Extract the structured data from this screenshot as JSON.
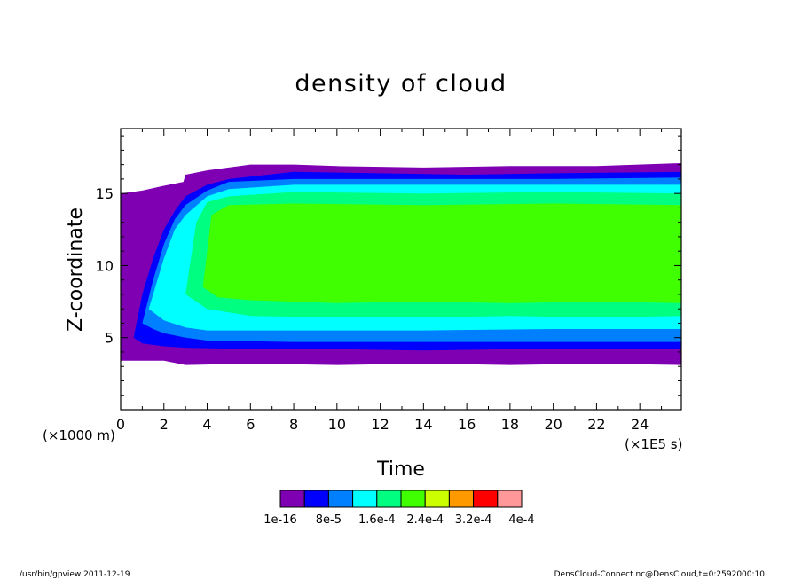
{
  "chart_data": {
    "type": "heatmap",
    "title": "density of cloud",
    "xlabel": "Time",
    "ylabel": "Z-coordinate",
    "x_unit": "(×1E5 s)",
    "y_unit": "(×1000 m)",
    "xlim": [
      0,
      25.92
    ],
    "ylim": [
      0,
      19.5
    ],
    "x_ticks": [
      0,
      2,
      4,
      6,
      8,
      10,
      12,
      14,
      16,
      18,
      20,
      22,
      24
    ],
    "x_tick_labels": [
      "0",
      "2",
      "4",
      "6",
      "8",
      "10",
      "12",
      "14",
      "16",
      "18",
      "20",
      "22",
      "24"
    ],
    "y_ticks": [
      5,
      10,
      15
    ],
    "y_tick_labels": [
      "5",
      "10",
      "15"
    ],
    "levels": [
      {
        "color": "#7f00b2"
      },
      {
        "color": "#0000ff"
      },
      {
        "color": "#0080ff"
      },
      {
        "color": "#00ffff"
      },
      {
        "color": "#00ff80"
      },
      {
        "color": "#40ff00"
      },
      {
        "color": "#ccff00"
      },
      {
        "color": "#ff9900"
      },
      {
        "color": "#ff0000"
      },
      {
        "color": "#ff9999"
      }
    ],
    "colorbar_labels": [
      "1e-16",
      "8e-5",
      "1.6e-4",
      "2.4e-4",
      "3.2e-4",
      "4e-4"
    ],
    "contours": [
      {
        "level": 0,
        "lower": [
          [
            0,
            3.4
          ],
          [
            1,
            3.4
          ],
          [
            2,
            3.4
          ],
          [
            3,
            3.1
          ],
          [
            6,
            3.2
          ],
          [
            10,
            3.1
          ],
          [
            14,
            3.2
          ],
          [
            18,
            3.1
          ],
          [
            22,
            3.2
          ],
          [
            25.92,
            3.1
          ]
        ],
        "upper": [
          [
            0,
            15.0
          ],
          [
            1,
            15.2
          ],
          [
            1.9,
            15.5
          ],
          [
            2.9,
            15.8
          ],
          [
            3.0,
            16.3
          ],
          [
            4.0,
            16.6
          ],
          [
            6,
            17.0
          ],
          [
            8,
            17.0
          ],
          [
            10,
            16.9
          ],
          [
            14,
            16.8
          ],
          [
            18,
            16.9
          ],
          [
            22,
            16.9
          ],
          [
            25.92,
            17.1
          ]
        ]
      },
      {
        "level": 1,
        "lower": [
          [
            0.6,
            5.0
          ],
          [
            1,
            4.6
          ],
          [
            2,
            4.4
          ],
          [
            3,
            4.3
          ],
          [
            6,
            4.2
          ],
          [
            10,
            4.2
          ],
          [
            14,
            4.1
          ],
          [
            18,
            4.2
          ],
          [
            22,
            4.2
          ],
          [
            25.92,
            4.2
          ]
        ],
        "upper": [
          [
            0.6,
            5.0
          ],
          [
            1,
            8.0
          ],
          [
            1.5,
            10.5
          ],
          [
            2,
            12.5
          ],
          [
            2.5,
            13.8
          ],
          [
            3,
            14.8
          ],
          [
            4,
            15.6
          ],
          [
            5,
            16.0
          ],
          [
            8,
            16.5
          ],
          [
            12,
            16.4
          ],
          [
            16,
            16.3
          ],
          [
            20,
            16.4
          ],
          [
            25.92,
            16.5
          ]
        ]
      },
      {
        "level": 2,
        "lower": [
          [
            1.0,
            6.0
          ],
          [
            1.5,
            5.6
          ],
          [
            2,
            5.3
          ],
          [
            3,
            5.0
          ],
          [
            4,
            4.8
          ],
          [
            8,
            4.7
          ],
          [
            14,
            4.7
          ],
          [
            20,
            4.7
          ],
          [
            25.92,
            4.7
          ]
        ],
        "upper": [
          [
            1.0,
            6.0
          ],
          [
            1.5,
            9.0
          ],
          [
            2,
            11.5
          ],
          [
            2.5,
            13.2
          ],
          [
            3,
            14.2
          ],
          [
            4,
            15.2
          ],
          [
            5,
            15.8
          ],
          [
            8,
            16.0
          ],
          [
            14,
            16.0
          ],
          [
            20,
            16.0
          ],
          [
            25.92,
            16.1
          ]
        ]
      },
      {
        "level": 3,
        "lower": [
          [
            1.3,
            7.0
          ],
          [
            2,
            6.2
          ],
          [
            3,
            5.7
          ],
          [
            4,
            5.5
          ],
          [
            8,
            5.5
          ],
          [
            14,
            5.5
          ],
          [
            20,
            5.6
          ],
          [
            25.92,
            5.6
          ]
        ],
        "upper": [
          [
            1.3,
            7.0
          ],
          [
            2,
            10.5
          ],
          [
            2.5,
            12.5
          ],
          [
            3,
            13.5
          ],
          [
            4,
            14.8
          ],
          [
            5,
            15.3
          ],
          [
            8,
            15.6
          ],
          [
            14,
            15.6
          ],
          [
            20,
            15.6
          ],
          [
            25.92,
            15.6
          ]
        ]
      },
      {
        "level": 4,
        "lower": [
          [
            3.0,
            8.0
          ],
          [
            4,
            7.0
          ],
          [
            6,
            6.5
          ],
          [
            10,
            6.4
          ],
          [
            14,
            6.4
          ],
          [
            18,
            6.5
          ],
          [
            22,
            6.4
          ],
          [
            25.92,
            6.5
          ]
        ],
        "upper": [
          [
            3.0,
            8.0
          ],
          [
            3.5,
            13.0
          ],
          [
            4,
            14.4
          ],
          [
            5,
            14.8
          ],
          [
            8,
            15.1
          ],
          [
            14,
            15.0
          ],
          [
            20,
            15.1
          ],
          [
            25.92,
            15.0
          ]
        ]
      },
      {
        "level": 5,
        "lower": [
          [
            3.8,
            8.5
          ],
          [
            4.5,
            7.8
          ],
          [
            6,
            7.6
          ],
          [
            10,
            7.4
          ],
          [
            14,
            7.5
          ],
          [
            18,
            7.4
          ],
          [
            22,
            7.5
          ],
          [
            25.92,
            7.4
          ]
        ],
        "upper": [
          [
            3.8,
            8.5
          ],
          [
            4.2,
            13.5
          ],
          [
            5,
            14.2
          ],
          [
            8,
            14.3
          ],
          [
            14,
            14.2
          ],
          [
            20,
            14.3
          ],
          [
            25.92,
            14.2
          ]
        ]
      }
    ]
  },
  "footer": {
    "left": "/usr/bin/gpview   2011-12-19",
    "right": "DensCloud-Connect.nc@DensCloud,t=0:2592000:10"
  }
}
